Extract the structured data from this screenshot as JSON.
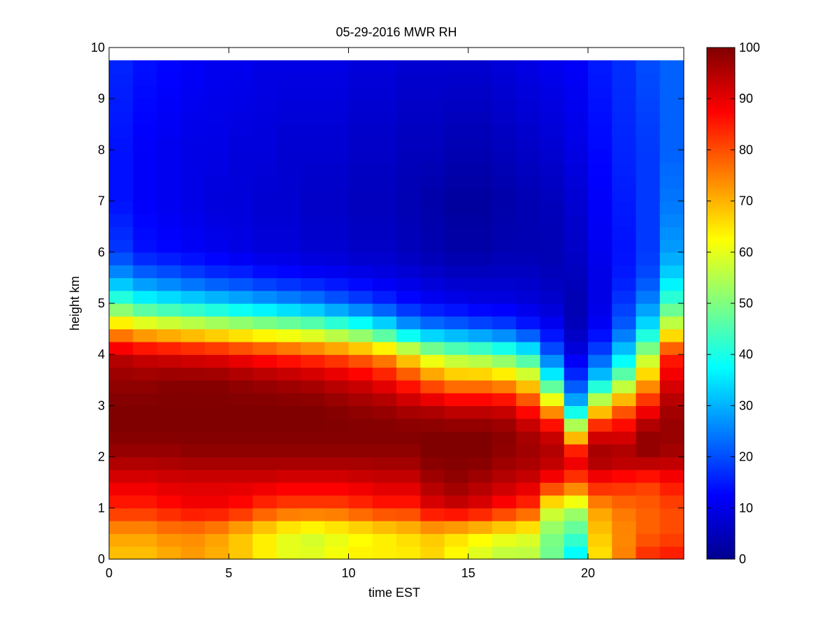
{
  "chart_data": {
    "type": "heatmap",
    "title": "05-29-2016 MWR RH",
    "xlabel": "time EST",
    "ylabel": "height km",
    "xlim": [
      0,
      24
    ],
    "ylim": [
      0,
      10
    ],
    "x_ticks": [
      0,
      5,
      10,
      15,
      20
    ],
    "y_ticks": [
      0,
      1,
      2,
      3,
      4,
      5,
      6,
      7,
      8,
      9,
      10
    ],
    "colorbar_ticks": [
      0,
      10,
      20,
      30,
      40,
      50,
      60,
      70,
      80,
      90,
      100
    ],
    "clim": [
      0,
      100
    ],
    "colormap": "jet",
    "x_centers": [
      0.5,
      1.5,
      2.5,
      3.5,
      4.5,
      5.5,
      6.5,
      7.5,
      8.5,
      9.5,
      10.5,
      11.5,
      12.5,
      13.5,
      14.5,
      15.5,
      16.5,
      17.5,
      18.5,
      19.5,
      20.5,
      21.5,
      22.5,
      23.5
    ],
    "y_max_km": 9.75,
    "profiles_note": "RH (%) at anchor heights per hour column",
    "anchor_heights_km": [
      0,
      0.5,
      1.0,
      1.5,
      2.0,
      2.5,
      3.0,
      3.5,
      4.0,
      4.5,
      5.0,
      5.5,
      6.0,
      7.0,
      8.0,
      9.75
    ],
    "rh_profiles": [
      [
        68,
        72,
        84,
        90,
        97,
        100,
        100,
        98,
        94,
        70,
        45,
        28,
        18,
        14,
        14,
        16
      ],
      [
        68,
        72,
        84,
        90,
        97,
        100,
        100,
        98,
        92,
        66,
        40,
        24,
        14,
        12,
        12,
        14
      ],
      [
        70,
        74,
        86,
        91,
        97,
        100,
        100,
        99,
        91,
        64,
        38,
        22,
        13,
        11,
        11,
        13
      ],
      [
        72,
        74,
        88,
        91,
        98,
        100,
        100,
        99,
        90,
        62,
        36,
        20,
        12,
        10,
        10,
        12
      ],
      [
        70,
        72,
        88,
        91,
        98,
        100,
        100,
        99,
        89,
        60,
        34,
        18,
        11,
        9,
        10,
        11
      ],
      [
        68,
        68,
        86,
        91,
        98,
        100,
        100,
        98,
        87,
        58,
        32,
        17,
        10,
        9,
        9,
        11
      ],
      [
        64,
        64,
        82,
        91,
        98,
        100,
        100,
        97,
        85,
        56,
        30,
        15,
        9,
        8,
        9,
        10
      ],
      [
        60,
        60,
        80,
        90,
        98,
        100,
        100,
        96,
        83,
        54,
        28,
        14,
        9,
        8,
        8,
        10
      ],
      [
        60,
        58,
        80,
        90,
        98,
        100,
        100,
        95,
        81,
        52,
        26,
        13,
        8,
        7,
        8,
        10
      ],
      [
        62,
        60,
        80,
        90,
        98,
        100,
        99,
        93,
        79,
        48,
        23,
        12,
        8,
        7,
        8,
        10
      ],
      [
        64,
        62,
        82,
        91,
        98,
        100,
        98,
        91,
        76,
        44,
        20,
        11,
        7,
        6,
        7,
        9
      ],
      [
        64,
        64,
        84,
        92,
        98,
        100,
        97,
        88,
        72,
        38,
        17,
        10,
        7,
        6,
        7,
        9
      ],
      [
        64,
        66,
        84,
        92,
        98,
        100,
        95,
        83,
        64,
        30,
        14,
        9,
        6,
        5,
        6,
        8
      ],
      [
        66,
        68,
        90,
        96,
        100,
        100,
        94,
        76,
        56,
        26,
        12,
        8,
        5,
        4,
        6,
        8
      ],
      [
        62,
        66,
        92,
        98,
        100,
        100,
        92,
        72,
        52,
        24,
        11,
        7,
        4,
        3,
        5,
        8
      ],
      [
        58,
        64,
        90,
        96,
        100,
        100,
        92,
        72,
        50,
        22,
        10,
        7,
        4,
        3,
        5,
        8
      ],
      [
        55,
        62,
        86,
        94,
        98,
        99,
        91,
        70,
        46,
        20,
        10,
        7,
        5,
        4,
        6,
        9
      ],
      [
        55,
        60,
        82,
        92,
        97,
        96,
        84,
        64,
        40,
        16,
        9,
        7,
        5,
        5,
        7,
        10
      ],
      [
        48,
        50,
        60,
        86,
        96,
        92,
        68,
        40,
        22,
        12,
        8,
        6,
        5,
        6,
        8,
        11
      ],
      [
        35,
        45,
        55,
        80,
        92,
        62,
        32,
        18,
        10,
        6,
        5,
        6,
        7,
        8,
        10,
        12
      ],
      [
        65,
        68,
        72,
        86,
        98,
        90,
        62,
        34,
        20,
        12,
        10,
        10,
        11,
        12,
        13,
        15
      ],
      [
        75,
        74,
        76,
        84,
        97,
        90,
        76,
        50,
        34,
        22,
        18,
        15,
        14,
        15,
        16,
        17
      ],
      [
        84,
        78,
        78,
        82,
        98,
        98,
        86,
        70,
        54,
        36,
        26,
        20,
        18,
        18,
        18,
        20
      ],
      [
        86,
        80,
        80,
        86,
        96,
        98,
        96,
        90,
        84,
        60,
        44,
        34,
        28,
        24,
        22,
        22
      ]
    ]
  }
}
